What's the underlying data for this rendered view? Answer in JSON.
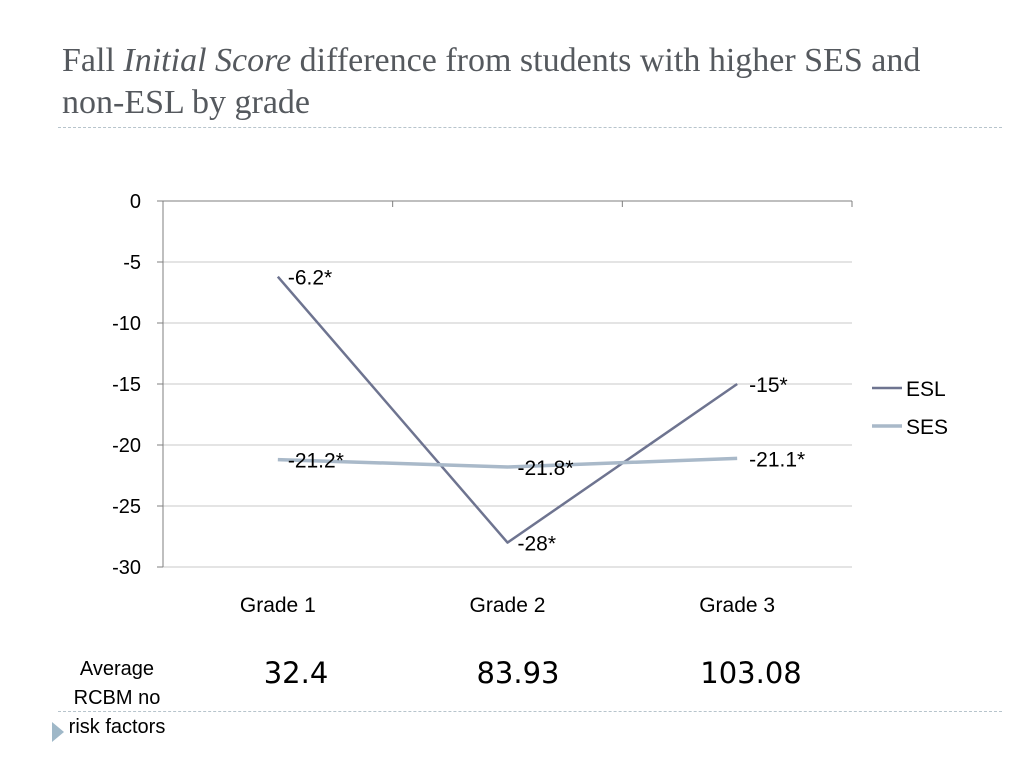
{
  "title": {
    "part1": "Fall ",
    "italic": "Initial Score",
    "part2": " difference from students with higher SES and non-ESL by grade"
  },
  "chart_data": {
    "type": "line",
    "categories": [
      "Grade 1",
      "Grade 2",
      "Grade 3"
    ],
    "ylim": [
      -30,
      0
    ],
    "yticks": [
      0,
      -5,
      -10,
      -15,
      -20,
      -25,
      -30
    ],
    "grid": true,
    "legend_position": "right",
    "series": [
      {
        "name": "ESL",
        "values": [
          -6.2,
          -28,
          -15
        ],
        "labels": [
          "-6.2*",
          "-28*",
          "-15*"
        ],
        "color": "#6e7490"
      },
      {
        "name": "SES",
        "values": [
          -21.2,
          -21.8,
          -21.1
        ],
        "labels": [
          "-21.2*",
          "-21.8*",
          "-21.1*"
        ],
        "color": "#a9b9c9"
      }
    ]
  },
  "averages": {
    "label": "Average RCBM no risk factors",
    "values": [
      "32.4",
      "83.93",
      "103.08"
    ]
  },
  "colors": {
    "title": "#55595e",
    "grid": "#c8c8c8",
    "axis": "#7f7f7f",
    "rule": "#b7c4cc",
    "bullet": "#9fb8c8"
  }
}
